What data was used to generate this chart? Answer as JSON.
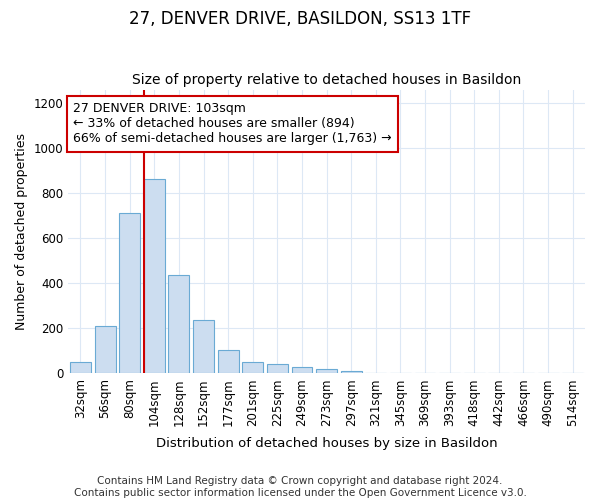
{
  "title": "27, DENVER DRIVE, BASILDON, SS13 1TF",
  "subtitle": "Size of property relative to detached houses in Basildon",
  "xlabel": "Distribution of detached houses by size in Basildon",
  "ylabel": "Number of detached properties",
  "categories": [
    "32sqm",
    "56sqm",
    "80sqm",
    "104sqm",
    "128sqm",
    "152sqm",
    "177sqm",
    "201sqm",
    "225sqm",
    "249sqm",
    "273sqm",
    "297sqm",
    "321sqm",
    "345sqm",
    "369sqm",
    "393sqm",
    "418sqm",
    "442sqm",
    "466sqm",
    "490sqm",
    "514sqm"
  ],
  "bar_values": [
    50,
    210,
    710,
    865,
    435,
    235,
    105,
    50,
    42,
    30,
    20,
    10,
    0,
    0,
    0,
    0,
    0,
    0,
    0,
    0,
    0
  ],
  "bar_color": "#ccddf0",
  "bar_edge_color": "#6aaad4",
  "annotation_text": "27 DENVER DRIVE: 103sqm\n← 33% of detached houses are smaller (894)\n66% of semi-detached houses are larger (1,763) →",
  "annotation_box_color": "#ffffff",
  "annotation_border_color": "#cc0000",
  "red_line_index": 3,
  "ylim": [
    0,
    1260
  ],
  "yticks": [
    0,
    200,
    400,
    600,
    800,
    1000,
    1200
  ],
  "title_fontsize": 12,
  "subtitle_fontsize": 10,
  "xlabel_fontsize": 9.5,
  "ylabel_fontsize": 9,
  "tick_fontsize": 8.5,
  "annotation_fontsize": 9,
  "footnote": "Contains HM Land Registry data © Crown copyright and database right 2024.\nContains public sector information licensed under the Open Government Licence v3.0.",
  "footnote_fontsize": 7.5,
  "background_color": "#ffffff",
  "axes_background_color": "#ffffff",
  "grid_color": "#dde8f5"
}
